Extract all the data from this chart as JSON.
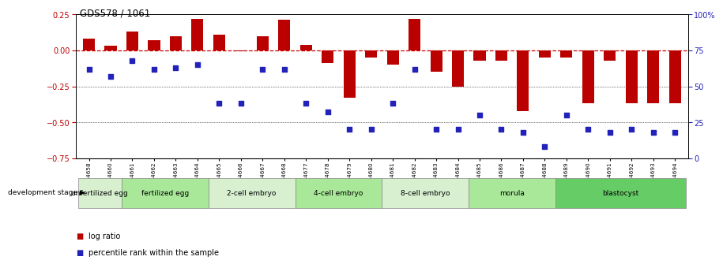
{
  "title": "GDS578 / 1061",
  "samples": [
    "GSM14658",
    "GSM14660",
    "GSM14661",
    "GSM14662",
    "GSM14663",
    "GSM14664",
    "GSM14665",
    "GSM14666",
    "GSM14667",
    "GSM14668",
    "GSM14677",
    "GSM14678",
    "GSM14679",
    "GSM14680",
    "GSM14681",
    "GSM14682",
    "GSM14683",
    "GSM14684",
    "GSM14685",
    "GSM14686",
    "GSM14687",
    "GSM14688",
    "GSM14689",
    "GSM14690",
    "GSM14691",
    "GSM14692",
    "GSM14693",
    "GSM14694"
  ],
  "log_ratio": [
    0.08,
    0.03,
    0.13,
    0.07,
    0.1,
    0.22,
    0.11,
    -0.005,
    0.1,
    0.21,
    0.04,
    -0.09,
    -0.33,
    -0.05,
    -0.1,
    0.22,
    -0.15,
    -0.25,
    -0.07,
    -0.07,
    -0.42,
    -0.05,
    -0.05,
    -0.37,
    -0.07,
    -0.37,
    -0.37,
    -0.37
  ],
  "percentile": [
    62,
    57,
    68,
    62,
    63,
    65,
    38,
    38,
    62,
    62,
    38,
    32,
    20,
    20,
    38,
    62,
    20,
    20,
    30,
    20,
    18,
    8,
    30,
    20,
    18,
    20,
    18,
    18
  ],
  "stages": [
    {
      "label": "unfertilized egg",
      "start": 0,
      "end": 2,
      "color": "#d8f0d0"
    },
    {
      "label": "fertilized egg",
      "start": 2,
      "end": 6,
      "color": "#a8e898"
    },
    {
      "label": "2-cell embryo",
      "start": 6,
      "end": 10,
      "color": "#d8f0d0"
    },
    {
      "label": "4-cell embryo",
      "start": 10,
      "end": 14,
      "color": "#a8e898"
    },
    {
      "label": "8-cell embryo",
      "start": 14,
      "end": 18,
      "color": "#d8f0d0"
    },
    {
      "label": "morula",
      "start": 18,
      "end": 22,
      "color": "#a8e898"
    },
    {
      "label": "blastocyst",
      "start": 22,
      "end": 28,
      "color": "#66cc66"
    }
  ],
  "bar_color": "#bb0000",
  "dot_color": "#2222bb",
  "dashed_line_color": "#cc0000",
  "ylim_left": [
    -0.75,
    0.25
  ],
  "ylim_right": [
    0,
    100
  ],
  "yticks_left": [
    -0.75,
    -0.5,
    -0.25,
    0.0,
    0.25
  ],
  "yticks_right": [
    0,
    25,
    50,
    75,
    100
  ],
  "fig_width": 9.06,
  "fig_height": 3.45,
  "dpi": 100
}
